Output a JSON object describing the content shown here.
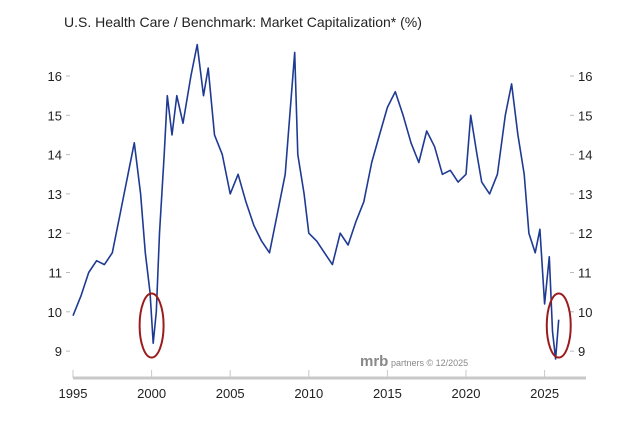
{
  "chart_data": {
    "type": "line",
    "title": "U.S. Health Care / Benchmark: Market Capitalization* (%)",
    "xlabel": "",
    "ylabel": "",
    "xlim": [
      1995,
      2027.7
    ],
    "ylim": [
      8.4,
      16.9
    ],
    "x_ticks": [
      "1995",
      "2000",
      "2005",
      "2010",
      "2015",
      "2020",
      "2025"
    ],
    "y_ticks": [
      "9",
      "10",
      "11",
      "12",
      "13",
      "14",
      "15",
      "16"
    ],
    "grid": false,
    "watermark": {
      "brand": "mrb",
      "text": "partners © 12/2025"
    },
    "series": [
      {
        "name": "U.S. Health Care / Benchmark",
        "color": "#1f3a93",
        "x": [
          1995.0,
          1995.5,
          1996.0,
          1996.5,
          1997.0,
          1997.5,
          1998.0,
          1998.5,
          1998.9,
          1999.3,
          1999.6,
          1999.9,
          2000.1,
          2000.3,
          2000.5,
          2000.8,
          2001.0,
          2001.3,
          2001.6,
          2002.0,
          2002.5,
          2002.9,
          2003.3,
          2003.6,
          2004.0,
          2004.5,
          2005.0,
          2005.5,
          2006.0,
          2006.5,
          2007.0,
          2007.5,
          2008.0,
          2008.5,
          2009.1,
          2009.3,
          2009.7,
          2010.0,
          2010.5,
          2011.0,
          2011.5,
          2012.0,
          2012.5,
          2013.0,
          2013.5,
          2014.0,
          2014.5,
          2015.0,
          2015.5,
          2016.0,
          2016.5,
          2017.0,
          2017.5,
          2018.0,
          2018.5,
          2019.0,
          2019.5,
          2020.0,
          2020.3,
          2020.7,
          2021.0,
          2021.5,
          2022.0,
          2022.5,
          2022.9,
          2023.3,
          2023.7,
          2024.0,
          2024.4,
          2024.7,
          2025.0,
          2025.3,
          2025.5,
          2025.7,
          2025.9
        ],
        "y": [
          9.9,
          10.4,
          11.0,
          11.3,
          11.2,
          11.5,
          12.5,
          13.5,
          14.3,
          13.0,
          11.5,
          10.5,
          9.2,
          10.0,
          12.0,
          14.0,
          15.5,
          14.5,
          15.5,
          14.8,
          16.0,
          16.8,
          15.5,
          16.2,
          14.5,
          14.0,
          13.0,
          13.5,
          12.8,
          12.2,
          11.8,
          11.5,
          12.5,
          13.5,
          16.6,
          14.0,
          13.0,
          12.0,
          11.8,
          11.5,
          11.2,
          12.0,
          11.7,
          12.3,
          12.8,
          13.8,
          14.5,
          15.2,
          15.6,
          15.0,
          14.3,
          13.8,
          14.6,
          14.2,
          13.5,
          13.6,
          13.3,
          13.5,
          15.0,
          14.0,
          13.3,
          13.0,
          13.5,
          15.0,
          15.8,
          14.5,
          13.5,
          12.0,
          11.5,
          12.1,
          10.2,
          11.4,
          9.5,
          8.8,
          9.8
        ]
      }
    ],
    "annotations": [
      {
        "type": "ellipse",
        "x": 2000.0,
        "y": 9.65,
        "color": "#9b1c1c"
      },
      {
        "type": "ellipse",
        "x": 2025.9,
        "y": 9.65,
        "color": "#9b1c1c"
      }
    ]
  }
}
